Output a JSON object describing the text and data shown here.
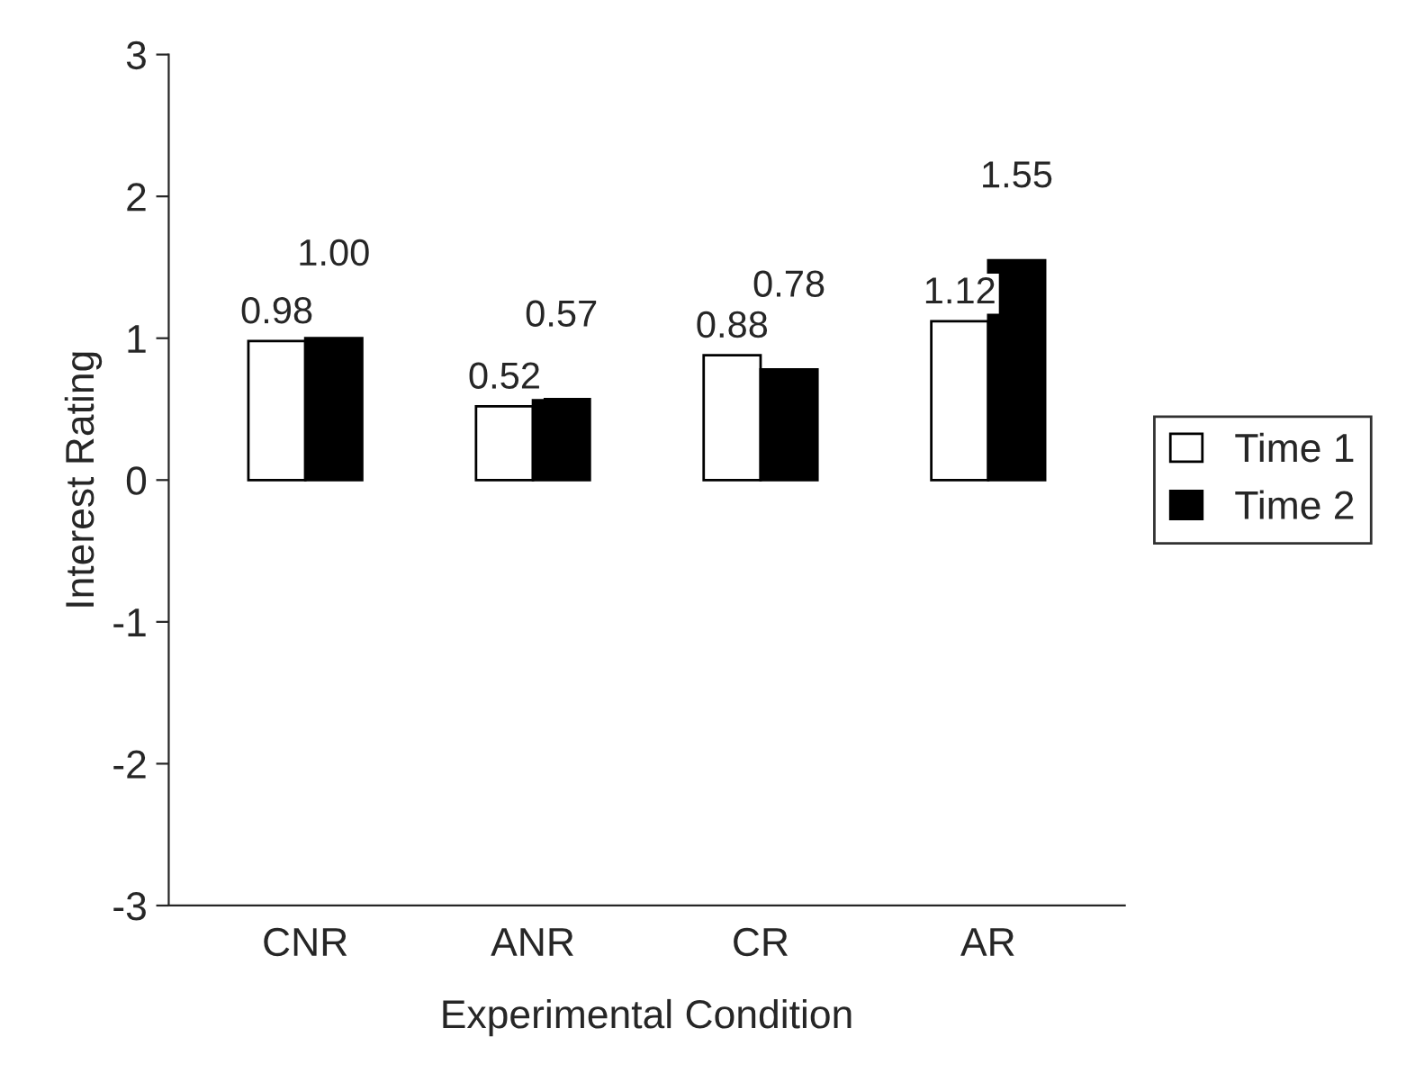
{
  "chart_data": {
    "type": "bar",
    "xlabel": "Experimental Condition",
    "ylabel": "Interest Rating",
    "categories": [
      "CNR",
      "ANR",
      "CR",
      "AR"
    ],
    "series": [
      {
        "name": "Time 1",
        "color": "#ffffff",
        "values": [
          0.98,
          0.52,
          0.88,
          1.12
        ],
        "value_labels": [
          "0.98",
          "0.52",
          "0.88",
          "1.12"
        ]
      },
      {
        "name": "Time 2",
        "color": "#000000",
        "values": [
          1.0,
          0.57,
          0.78,
          1.55
        ],
        "value_labels": [
          "1.00",
          "0.57",
          "0.78",
          "1.55"
        ]
      }
    ],
    "ylim": [
      -3,
      3
    ],
    "yticks": [
      -3,
      -2,
      -1,
      0,
      1,
      2,
      3
    ],
    "legend": "right",
    "grid": false
  }
}
